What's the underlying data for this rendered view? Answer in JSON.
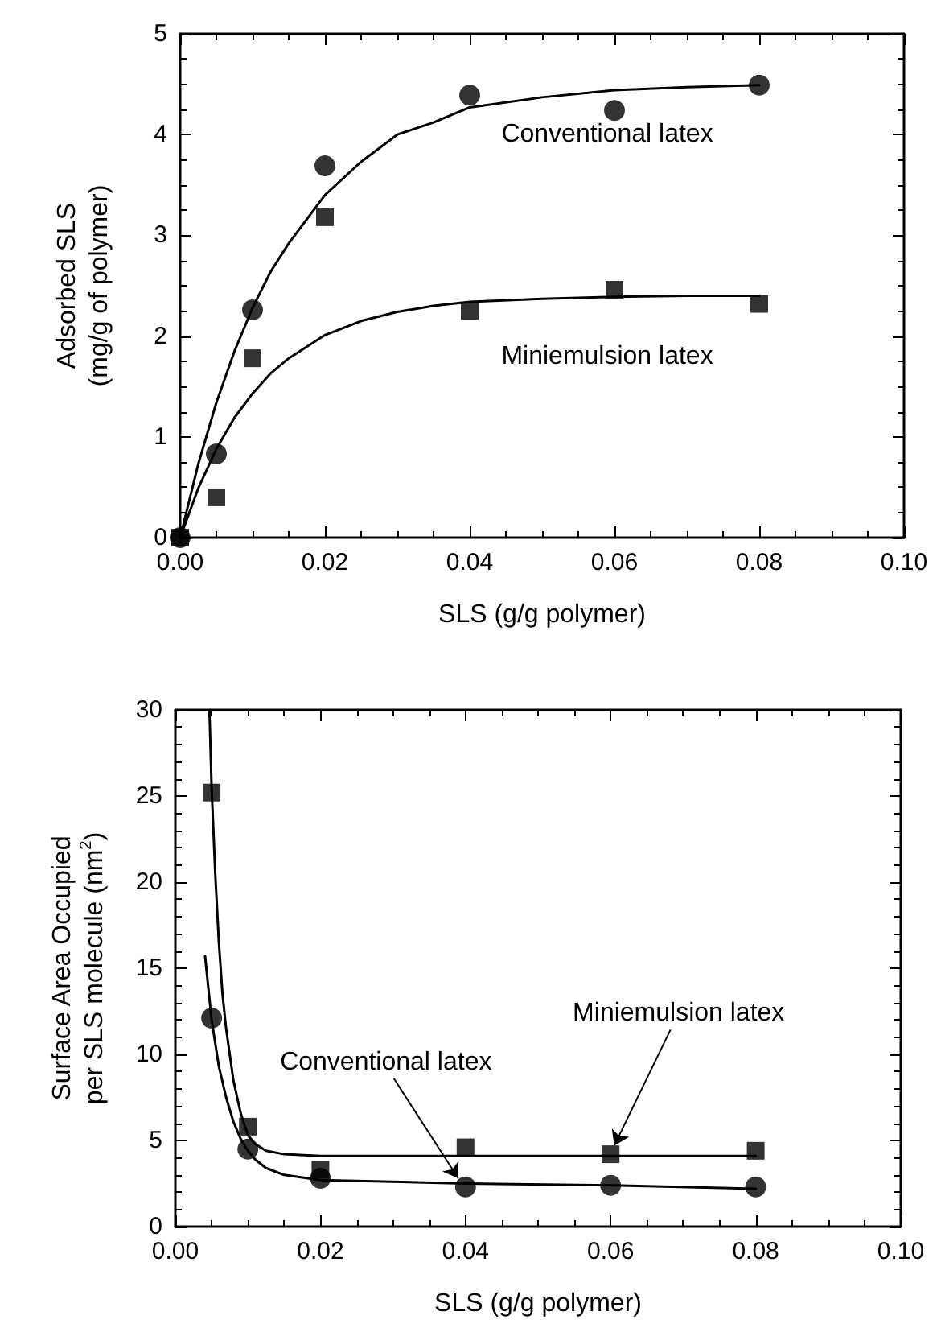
{
  "chart_data": [
    {
      "type": "scatter",
      "xlabel": "SLS (g/g polymer)",
      "ylabel": "Adsorbed SLS\n(mg/g of polymer)",
      "xlim": [
        0,
        0.1
      ],
      "xticks": [
        {
          "value": 0,
          "label": "0.00"
        },
        {
          "value": 0.02,
          "label": "0.02"
        },
        {
          "value": 0.04,
          "label": "0.04"
        },
        {
          "value": 0.06,
          "label": "0.06"
        },
        {
          "value": 0.08,
          "label": "0.08"
        },
        {
          "value": 0.1,
          "label": "0.10"
        }
      ],
      "ylim": [
        0,
        5
      ],
      "yticks": [
        0,
        1,
        2,
        3,
        4,
        5
      ],
      "grid": false,
      "series": [
        {
          "marker": "circle",
          "color": "#000000",
          "x": [
            0,
            0.005,
            0.01,
            0.02,
            0.04,
            0.06,
            0.08
          ],
          "values": [
            0,
            0.83,
            2.26,
            3.69,
            4.39,
            4.24,
            4.49
          ]
        },
        {
          "marker": "square",
          "color": "#000000",
          "x": [
            0,
            0.005,
            0.01,
            0.02,
            0.04,
            0.06,
            0.08
          ],
          "values": [
            0,
            0.4,
            1.78,
            3.18,
            2.25,
            2.46,
            2.32
          ]
        },
        {
          "type": "line",
          "marker": "none",
          "line_style": "solid",
          "color": "#000000",
          "x": [
            0,
            0.0025,
            0.005,
            0.0075,
            0.01,
            0.0125,
            0.015,
            0.02,
            0.025,
            0.03,
            0.035,
            0.04,
            0.05,
            0.06,
            0.07,
            0.08
          ],
          "values": [
            0,
            0.73,
            1.34,
            1.85,
            2.28,
            2.64,
            2.92,
            3.4,
            3.73,
            4.0,
            4.12,
            4.27,
            4.37,
            4.44,
            4.47,
            4.49
          ]
        },
        {
          "type": "line",
          "marker": "none",
          "line_style": "solid",
          "color": "#000000",
          "x": [
            0,
            0.0025,
            0.005,
            0.0075,
            0.01,
            0.0125,
            0.015,
            0.02,
            0.025,
            0.03,
            0.035,
            0.04,
            0.05,
            0.06,
            0.07,
            0.08
          ],
          "values": [
            0,
            0.49,
            0.88,
            1.19,
            1.43,
            1.63,
            1.78,
            2.01,
            2.15,
            2.24,
            2.3,
            2.34,
            2.37,
            2.39,
            2.4,
            2.4
          ]
        }
      ],
      "annotations": [
        "Conventional latex",
        "Miniemulsion latex"
      ]
    },
    {
      "type": "scatter",
      "xlabel": "SLS (g/g polymer)",
      "ylabel": "Surface Area Occupied\nper SLS molecule (nm$^{2}$)",
      "xlim": [
        0,
        0.1
      ],
      "xticks": [
        {
          "value": 0,
          "label": "0.00"
        },
        {
          "value": 0.02,
          "label": "0.02"
        },
        {
          "value": 0.04,
          "label": "0.04"
        },
        {
          "value": 0.06,
          "label": "0.06"
        },
        {
          "value": 0.08,
          "label": "0.08"
        },
        {
          "value": 0.1,
          "label": "0.10"
        }
      ],
      "ylim": [
        0,
        30
      ],
      "yticks": [
        0,
        5,
        10,
        15,
        20,
        25,
        30
      ],
      "grid": false,
      "series": [
        {
          "marker": "square",
          "color": "#000000",
          "x": [
            0.005,
            0.01,
            0.02,
            0.04,
            0.06,
            0.08
          ],
          "values": [
            25.2,
            5.8,
            3.3,
            4.6,
            4.2,
            4.4
          ]
        },
        {
          "marker": "circle",
          "color": "#000000",
          "x": [
            0.005,
            0.01,
            0.02,
            0.04,
            0.06,
            0.08
          ],
          "values": [
            12.1,
            4.5,
            2.8,
            2.3,
            2.4,
            2.3
          ]
        },
        {
          "type": "line",
          "marker": "none",
          "line_style": "solid",
          "color": "#000000",
          "x": [
            0.0047,
            0.005,
            0.0055,
            0.006,
            0.0065,
            0.007,
            0.008,
            0.009,
            0.01,
            0.011,
            0.0125,
            0.015,
            0.02,
            0.04,
            0.06,
            0.08
          ],
          "values": [
            30,
            25.5,
            20.5,
            16.5,
            13.5,
            11.5,
            8.5,
            6.6,
            5.3,
            4.8,
            4.4,
            4.2,
            4.1,
            4.1,
            4.1,
            4.1
          ]
        },
        {
          "type": "line",
          "marker": "none",
          "line_style": "solid",
          "color": "#000000",
          "x": [
            0.0041,
            0.005,
            0.006,
            0.007,
            0.008,
            0.009,
            0.01,
            0.011,
            0.0125,
            0.015,
            0.02,
            0.04,
            0.06,
            0.08
          ],
          "values": [
            15.7,
            12.0,
            9.3,
            7.5,
            6.1,
            5.1,
            4.4,
            3.9,
            3.4,
            3.0,
            2.7,
            2.5,
            2.4,
            2.2
          ]
        }
      ],
      "annotations": [
        {
          "text": "Conventional latex",
          "x": 0.039,
          "y": 2.8
        },
        {
          "text": "Miniemulsion latex",
          "x": 0.0605,
          "y": 4.7
        }
      ]
    }
  ]
}
